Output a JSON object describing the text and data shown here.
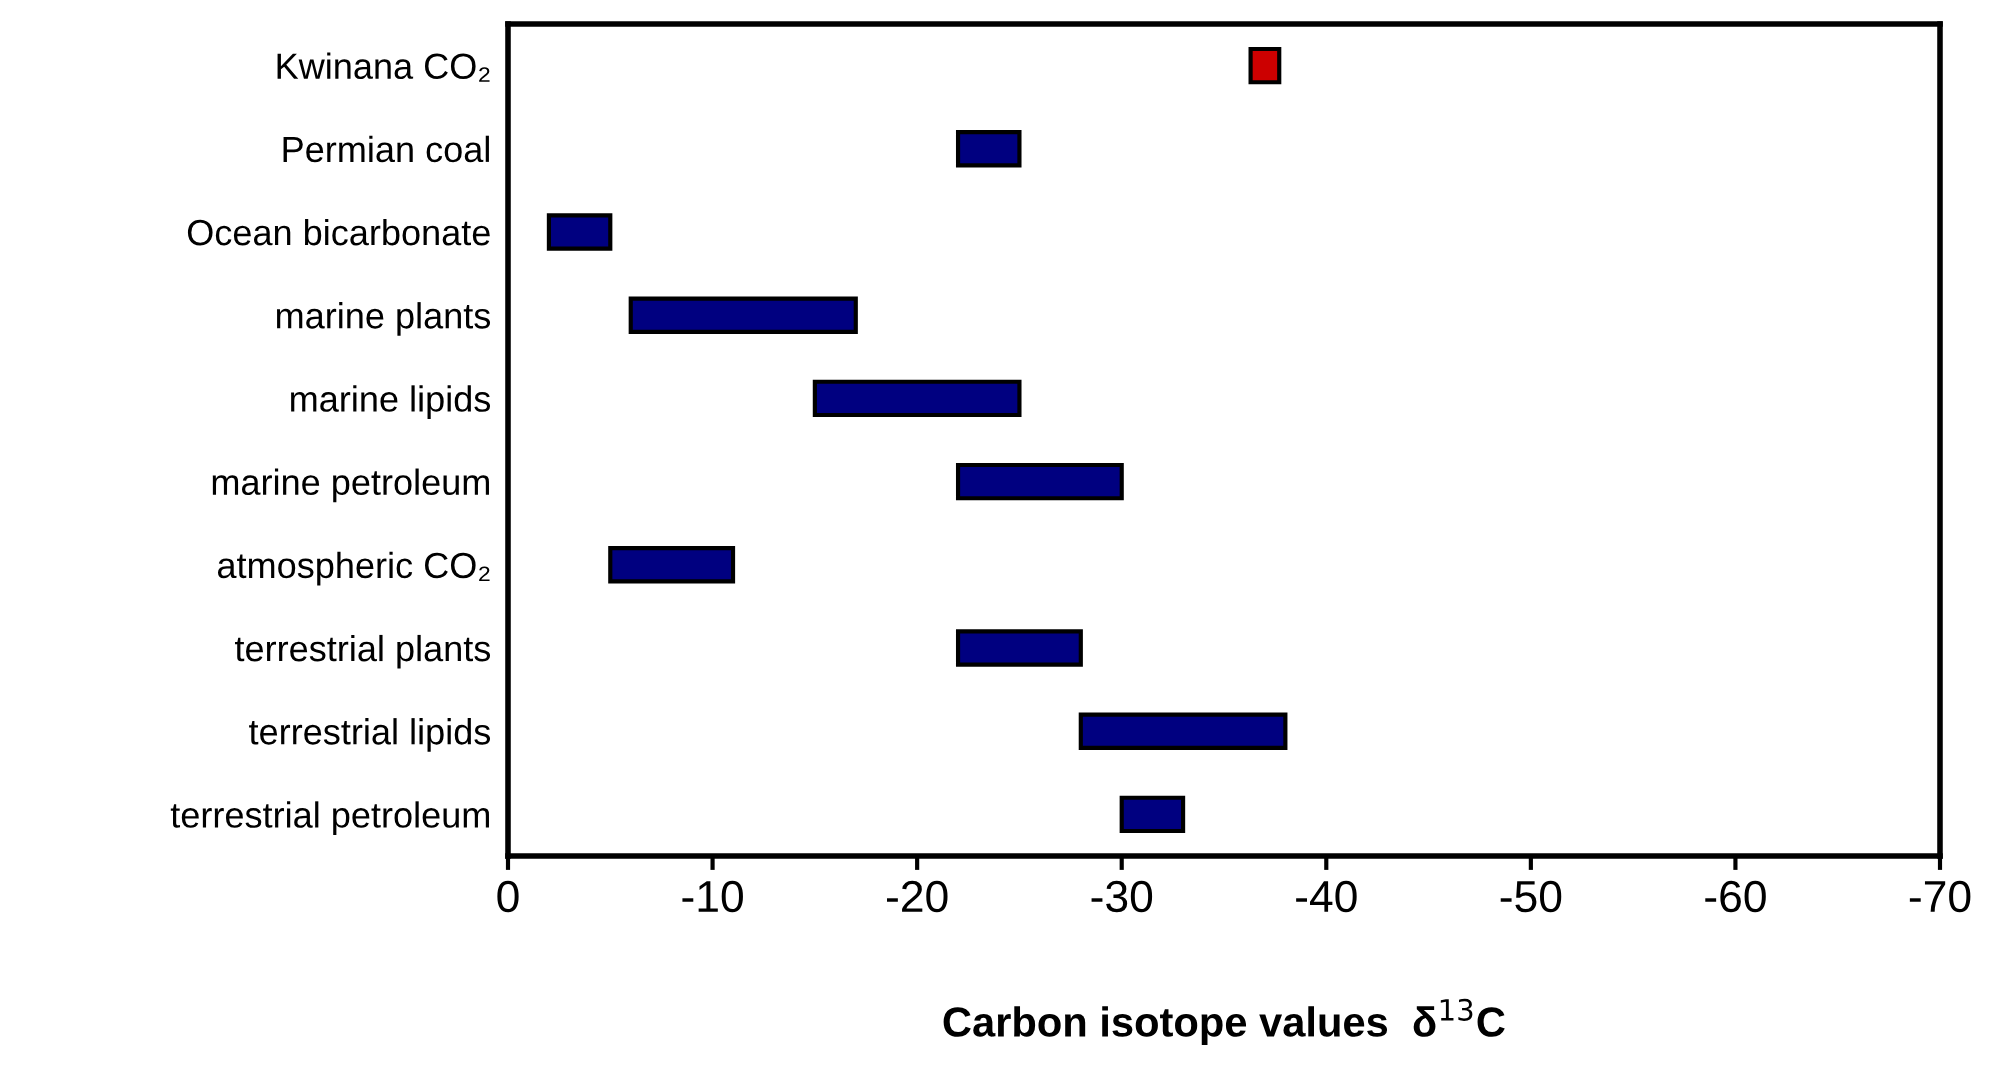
{
  "chart_data": {
    "type": "bar",
    "orientation": "horizontal",
    "xlabel": "Carbon isotope values  δ$^{13}$C",
    "categories": [
      "Kwinana CO₂",
      "Permian coal",
      "Ocean bicarbonate",
      "marine plants",
      "marine lipids",
      "marine petroleum",
      "atmospheric CO₂",
      "terrestrial plants",
      "terrestrial lipids",
      "terrestrial petroleum"
    ],
    "base": [
      -36.3,
      -22,
      -2,
      -6,
      -15,
      -22,
      -5,
      -22,
      -28,
      -30
    ],
    "values": [
      -1.4,
      -3,
      -3,
      -11,
      -10,
      -8,
      -6,
      -6,
      -10,
      -3
    ],
    "colors": [
      "#cc0000",
      "#000080",
      "#000080",
      "#000080",
      "#000080",
      "#000080",
      "#000080",
      "#000080",
      "#000080",
      "#000080"
    ],
    "xlim": [
      0,
      -70
    ],
    "xticks": [
      0,
      -10,
      -20,
      -30,
      -40,
      -50,
      -60,
      -70
    ],
    "grid": false,
    "legend": false
  }
}
